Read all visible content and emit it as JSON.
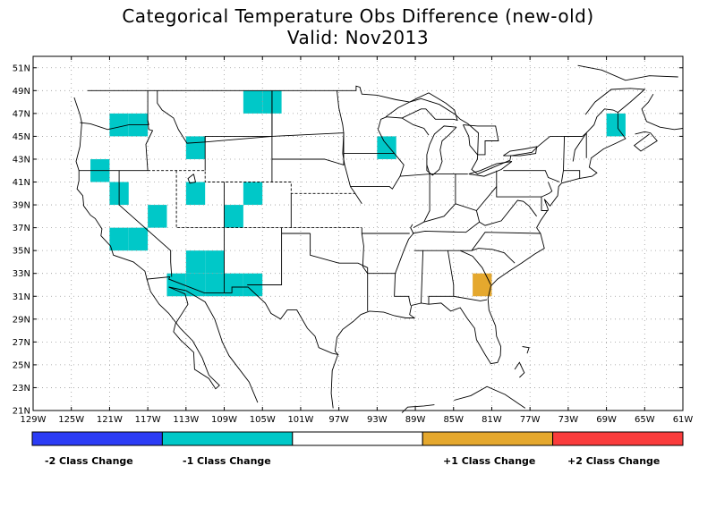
{
  "title": "Categorical Temperature Obs Difference (new-old)",
  "subtitle": "Valid: Nov2013",
  "map": {
    "lon_range": [
      -129,
      -61
    ],
    "lat_range": [
      21,
      52
    ],
    "lat_ticks": [
      {
        "value": 51,
        "label": "51N"
      },
      {
        "value": 49,
        "label": "49N"
      },
      {
        "value": 47,
        "label": "47N"
      },
      {
        "value": 45,
        "label": "45N"
      },
      {
        "value": 43,
        "label": "43N"
      },
      {
        "value": 41,
        "label": "41N"
      },
      {
        "value": 39,
        "label": "39N"
      },
      {
        "value": 37,
        "label": "37N"
      },
      {
        "value": 35,
        "label": "35N"
      },
      {
        "value": 33,
        "label": "33N"
      },
      {
        "value": 31,
        "label": "31N"
      },
      {
        "value": 29,
        "label": "29N"
      },
      {
        "value": 27,
        "label": "27N"
      },
      {
        "value": 25,
        "label": "25N"
      },
      {
        "value": 23,
        "label": "23N"
      },
      {
        "value": 21,
        "label": "21N"
      }
    ],
    "lon_ticks": [
      {
        "value": -129,
        "label": "129W"
      },
      {
        "value": -125,
        "label": "125W"
      },
      {
        "value": -121,
        "label": "121W"
      },
      {
        "value": -117,
        "label": "117W"
      },
      {
        "value": -113,
        "label": "113W"
      },
      {
        "value": -109,
        "label": "109W"
      },
      {
        "value": -105,
        "label": "105W"
      },
      {
        "value": -101,
        "label": "101W"
      },
      {
        "value": -97,
        "label": "97W"
      },
      {
        "value": -93,
        "label": "93W"
      },
      {
        "value": -89,
        "label": "89W"
      },
      {
        "value": -85,
        "label": "85W"
      },
      {
        "value": -81,
        "label": "81W"
      },
      {
        "value": -77,
        "label": "77W"
      },
      {
        "value": -73,
        "label": "73W"
      },
      {
        "value": -69,
        "label": "69W"
      },
      {
        "value": -65,
        "label": "65W"
      },
      {
        "value": -61,
        "label": "61W"
      }
    ],
    "grid": "dotted",
    "cells": [
      {
        "lon": -106,
        "lat": 48,
        "class": -1
      },
      {
        "lon": -104,
        "lat": 48,
        "class": -1
      },
      {
        "lon": -120,
        "lat": 46,
        "class": -1
      },
      {
        "lon": -118,
        "lat": 46,
        "class": -1
      },
      {
        "lon": -68,
        "lat": 46,
        "class": -1
      },
      {
        "lon": -112,
        "lat": 44,
        "class": -1
      },
      {
        "lon": -92,
        "lat": 44,
        "class": -1
      },
      {
        "lon": -122,
        "lat": 42,
        "class": -1
      },
      {
        "lon": -120,
        "lat": 40,
        "class": -1
      },
      {
        "lon": -112,
        "lat": 40,
        "class": -1
      },
      {
        "lon": -106,
        "lat": 40,
        "class": -1
      },
      {
        "lon": -116,
        "lat": 38,
        "class": -1
      },
      {
        "lon": -108,
        "lat": 38,
        "class": -1
      },
      {
        "lon": -120,
        "lat": 36,
        "class": -1
      },
      {
        "lon": -118,
        "lat": 36,
        "class": -1
      },
      {
        "lon": -112,
        "lat": 34,
        "class": -1
      },
      {
        "lon": -110,
        "lat": 34,
        "class": -1
      },
      {
        "lon": -114,
        "lat": 32,
        "class": -1
      },
      {
        "lon": -112,
        "lat": 32,
        "class": -1
      },
      {
        "lon": -110,
        "lat": 32,
        "class": -1
      },
      {
        "lon": -108,
        "lat": 32,
        "class": -1
      },
      {
        "lon": -106,
        "lat": 32,
        "class": -1
      },
      {
        "lon": -82,
        "lat": 32,
        "class": 1
      }
    ]
  },
  "legend": {
    "items": [
      {
        "label": "-2 Class Change",
        "color": "#2b3cf5"
      },
      {
        "label": "-1 Class Change",
        "color": "#00c8c8"
      },
      {
        "label": "",
        "color": "#ffffff"
      },
      {
        "label": "+1 Class Change",
        "color": "#e5a82e"
      },
      {
        "label": "+2 Class Change",
        "color": "#fa3c3c"
      }
    ]
  }
}
